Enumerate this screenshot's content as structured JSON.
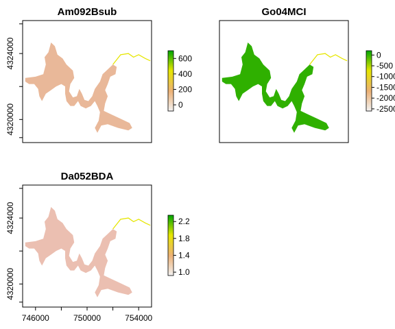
{
  "colors": {
    "background": "#ffffff",
    "terrain_low": "#f2f2f2",
    "terrain_mid1": "#ecb176",
    "terrain_mid2": "#e6e600",
    "terrain_high": "#00a600",
    "frame": "#000000"
  },
  "chart_data": [
    {
      "type": "raster-map",
      "title": "Am092Bsub",
      "xlim": [
        745000,
        755000
      ],
      "ylim": [
        4318600,
        4326000
      ],
      "x_ticks": [],
      "y_ticks": [
        {
          "value": 4320000,
          "label": "4320000"
        },
        {
          "value": 4324000,
          "label": "4324000"
        }
      ],
      "legend": {
        "min": -80,
        "max": 700,
        "ticks": [
          {
            "value": 0,
            "label": "0"
          },
          {
            "value": 200,
            "label": "200"
          },
          {
            "value": 400,
            "label": "400"
          },
          {
            "value": 600,
            "label": "600"
          }
        ]
      },
      "fill_color": "#e9b899",
      "grid": false
    },
    {
      "type": "raster-map",
      "title": "Go04MCI",
      "xlim": [
        745000,
        755000
      ],
      "ylim": [
        4318600,
        4326000
      ],
      "x_ticks": [],
      "y_ticks": [],
      "legend": {
        "min": -2600,
        "max": 200,
        "ticks": [
          {
            "value": 0,
            "label": "0"
          },
          {
            "value": -500,
            "label": "-500"
          },
          {
            "value": -1000,
            "label": "-1000"
          },
          {
            "value": -1500,
            "label": "-1500"
          },
          {
            "value": -2000,
            "label": "-2000"
          },
          {
            "value": -2500,
            "label": "-2500"
          }
        ]
      },
      "fill_color": "#2fb000",
      "grid": false
    },
    {
      "type": "raster-map",
      "title": "Da052BDA",
      "xlim": [
        745000,
        755000
      ],
      "ylim": [
        4318600,
        4326000
      ],
      "x_ticks": [
        {
          "value": 746000,
          "label": "746000"
        },
        {
          "value": 750000,
          "label": "750000"
        },
        {
          "value": 754000,
          "label": "754000"
        }
      ],
      "y_ticks": [
        {
          "value": 4320000,
          "label": "4320000"
        },
        {
          "value": 4324000,
          "label": "4324000"
        }
      ],
      "legend": {
        "min": 0.92,
        "max": 2.35,
        "ticks": [
          {
            "value": 1.0,
            "label": "1.0"
          },
          {
            "value": 1.4,
            "label": "1.4"
          },
          {
            "value": 1.8,
            "label": "1.8"
          },
          {
            "value": 2.2,
            "label": "2.2"
          }
        ]
      },
      "fill_color": "#ebbfb1",
      "grid": false
    }
  ]
}
